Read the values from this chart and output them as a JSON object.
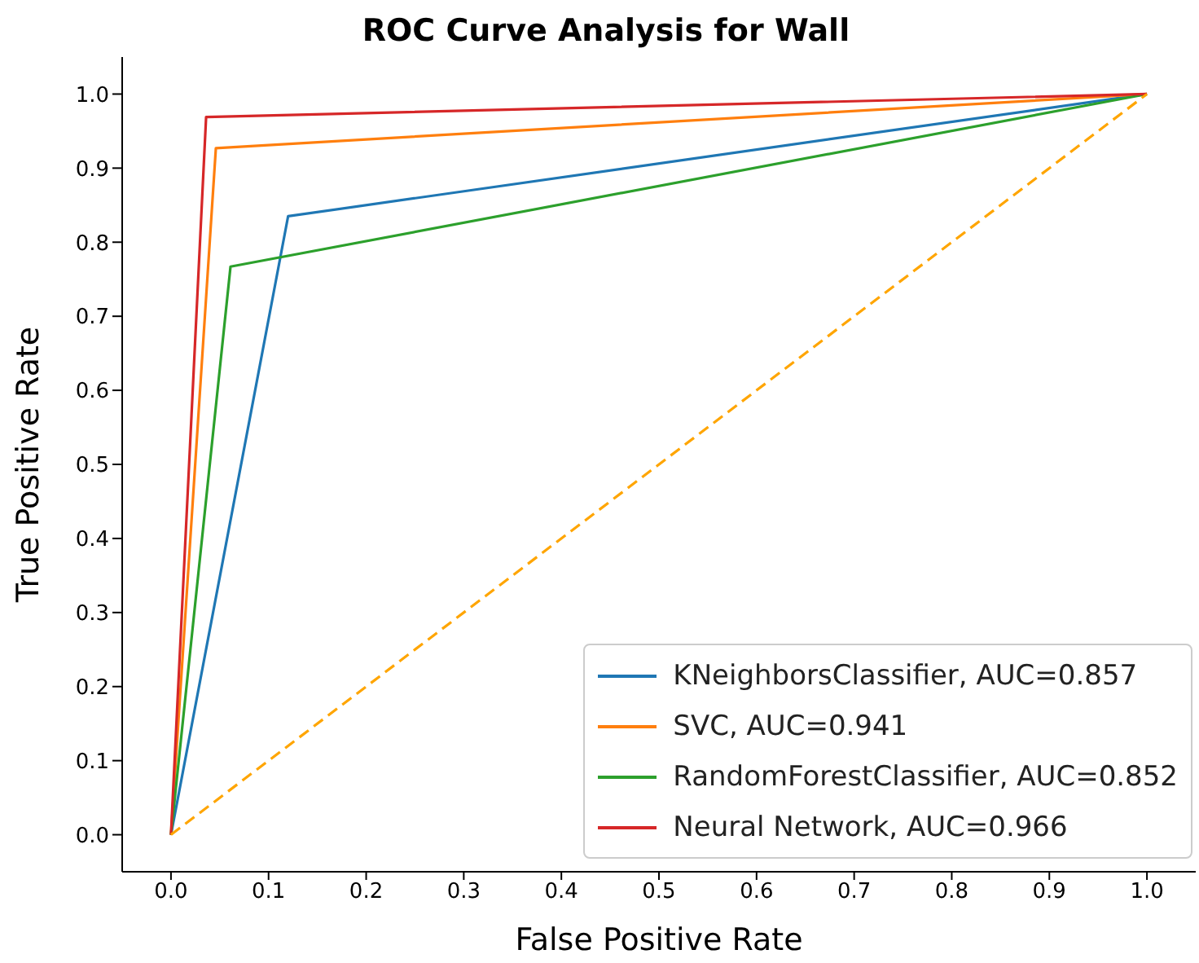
{
  "chart_data": {
    "type": "line",
    "title": "ROC Curve Analysis for Wall",
    "xlabel": "False Positive Rate",
    "ylabel": "True Positive Rate",
    "series": [
      {
        "name": "KNeighborsClassifier, AUC=0.857",
        "color": "#1f77b4",
        "x": [
          0,
          0.12,
          1
        ],
        "values": [
          0,
          0.835,
          1
        ]
      },
      {
        "name": "SVC, AUC=0.941",
        "color": "#ff7f0e",
        "x": [
          0,
          0.046,
          1
        ],
        "values": [
          0,
          0.927,
          1
        ]
      },
      {
        "name": "RandomForestClassifier, AUC=0.852",
        "color": "#2ca02c",
        "x": [
          0,
          0.061,
          1
        ],
        "values": [
          0,
          0.767,
          1
        ]
      },
      {
        "name": "Neural Network, AUC=0.966",
        "color": "#d62728",
        "x": [
          0,
          0.036,
          1
        ],
        "values": [
          0,
          0.969,
          1
        ]
      },
      {
        "color": "#ffa500",
        "x": [
          0,
          1
        ],
        "values": [
          0,
          1
        ],
        "line_style": "dashed"
      }
    ],
    "xlim": [
      -0.05,
      1.05
    ],
    "ylim": [
      -0.05,
      1.05
    ],
    "xticks": [
      {
        "value": 0,
        "label": "0.0"
      },
      {
        "value": 0.1,
        "label": "0.1"
      },
      {
        "value": 0.2,
        "label": "0.2"
      },
      {
        "value": 0.3,
        "label": "0.3"
      },
      {
        "value": 0.4,
        "label": "0.4"
      },
      {
        "value": 0.5,
        "label": "0.5"
      },
      {
        "value": 0.6,
        "label": "0.6"
      },
      {
        "value": 0.7,
        "label": "0.7"
      },
      {
        "value": 0.8,
        "label": "0.8"
      },
      {
        "value": 0.9,
        "label": "0.9"
      },
      {
        "value": 1,
        "label": "1.0"
      }
    ],
    "yticks": [
      {
        "value": 0,
        "label": "0.0"
      },
      {
        "value": 0.1,
        "label": "0.1"
      },
      {
        "value": 0.2,
        "label": "0.2"
      },
      {
        "value": 0.3,
        "label": "0.3"
      },
      {
        "value": 0.4,
        "label": "0.4"
      },
      {
        "value": 0.5,
        "label": "0.5"
      },
      {
        "value": 0.6,
        "label": "0.6"
      },
      {
        "value": 0.7,
        "label": "0.7"
      },
      {
        "value": 0.8,
        "label": "0.8"
      },
      {
        "value": 0.9,
        "label": "0.9"
      },
      {
        "value": 1,
        "label": "1.0"
      }
    ],
    "grid": false,
    "legend": "bottom right",
    "marker": "none",
    "line_style": "solid"
  }
}
